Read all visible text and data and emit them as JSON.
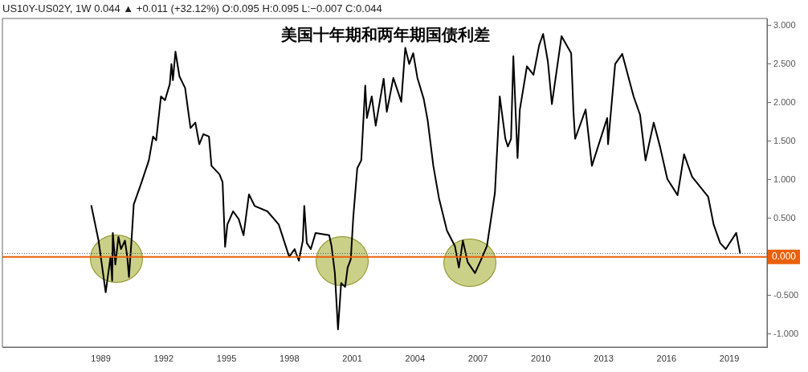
{
  "chart_data": {
    "type": "line",
    "title": "美国十年期和两年期国债利差",
    "subtitle": "US10Y-US02Y, 1W  0.044 ▲ +0.011 (+32.12%) O:0.095 H:0.095 L:−0.007 C:0.044",
    "x": [
      1988.54,
      1988.89,
      1989.23,
      1989.46,
      1989.54,
      1989.57,
      1989.69,
      1989.84,
      1989.96,
      1990.15,
      1990.26,
      1990.34,
      1990.45,
      1990.57,
      1990.91,
      1991.29,
      1991.49,
      1991.64,
      1991.87,
      1992.06,
      1992.29,
      1992.37,
      1992.44,
      1992.56,
      1992.75,
      1993.02,
      1993.28,
      1993.51,
      1993.7,
      1993.89,
      1994.16,
      1994.28,
      1994.66,
      1994.81,
      1994.93,
      1995.04,
      1995.31,
      1995.58,
      1995.81,
      1996.07,
      1996.34,
      1996.95,
      1997.49,
      1997.99,
      1998.25,
      1998.45,
      1998.64,
      1998.71,
      1998.83,
      1999.02,
      1999.25,
      1999.9,
      2000.01,
      2000.17,
      2000.32,
      2000.47,
      2000.66,
      2000.78,
      2000.93,
      2001.05,
      2001.24,
      2001.43,
      2001.62,
      2001.7,
      2001.93,
      2002.12,
      2002.5,
      2002.65,
      2002.96,
      2003.34,
      2003.53,
      2003.72,
      2003.91,
      2004.11,
      2004.41,
      2004.6,
      2004.87,
      2005.14,
      2005.52,
      2005.9,
      2006.09,
      2006.28,
      2006.51,
      2006.86,
      2007.16,
      2007.43,
      2007.81,
      2008.01,
      2008.04,
      2008.31,
      2008.43,
      2008.58,
      2008.69,
      2008.89,
      2009.0,
      2009.34,
      2009.65,
      2009.92,
      2010.11,
      2010.34,
      2010.53,
      2010.99,
      2011.45,
      2011.56,
      2011.64,
      2012.14,
      2012.44,
      2013.17,
      2013.21,
      2013.55,
      2013.89,
      2014.43,
      2014.74,
      2015.0,
      2015.39,
      2015.69,
      2016.04,
      2016.53,
      2016.84,
      2017.22,
      2017.99,
      2018.25,
      2018.56,
      2018.83,
      2019.33,
      2019.52
    ],
    "series": [
      {
        "color": "#000000",
        "values": [
          0.67,
          0.21,
          -0.46,
          0.0,
          -0.31,
          0.31,
          -0.1,
          0.26,
          0.1,
          0.21,
          0.0,
          -0.26,
          0.16,
          0.68,
          0.94,
          1.25,
          1.56,
          1.51,
          2.08,
          2.03,
          2.24,
          2.5,
          2.29,
          2.66,
          2.34,
          2.19,
          1.67,
          1.74,
          1.46,
          1.59,
          1.56,
          1.18,
          1.07,
          0.97,
          0.13,
          0.42,
          0.59,
          0.49,
          0.28,
          0.81,
          0.66,
          0.59,
          0.42,
          0.0,
          0.1,
          -0.05,
          0.21,
          0.66,
          0.18,
          0.1,
          0.31,
          0.28,
          0.14,
          -0.21,
          -0.94,
          -0.34,
          -0.39,
          -0.14,
          -0.03,
          0.52,
          1.15,
          1.25,
          2.22,
          1.8,
          2.08,
          1.7,
          2.31,
          1.88,
          2.32,
          2.01,
          2.71,
          2.5,
          2.64,
          2.32,
          2.05,
          1.77,
          1.18,
          0.76,
          0.34,
          0.14,
          -0.14,
          0.21,
          -0.07,
          -0.21,
          -0.03,
          0.14,
          0.83,
          1.88,
          2.08,
          1.53,
          1.43,
          1.53,
          2.6,
          1.28,
          1.91,
          2.47,
          2.36,
          2.74,
          2.89,
          2.53,
          1.98,
          2.86,
          2.64,
          1.88,
          1.53,
          1.91,
          1.18,
          1.8,
          1.46,
          2.5,
          2.63,
          2.08,
          1.84,
          1.25,
          1.74,
          1.43,
          1.01,
          0.8,
          1.33,
          1.04,
          0.78,
          0.42,
          0.18,
          0.1,
          0.31,
          0.04
        ]
      }
    ],
    "xlim": [
      1984.3,
      2020.8
    ],
    "xticks": [
      1989,
      1992,
      1995,
      1998,
      2001,
      2004,
      2007,
      2010,
      2013,
      2016,
      2019
    ],
    "ylim": [
      -1.17,
      3.09
    ],
    "yticks": [
      {
        "value": -1,
        "label": "-1.000"
      },
      {
        "value": -0.5,
        "label": "-0.500"
      },
      {
        "value": 0.5,
        "label": "0.500"
      },
      {
        "value": 1,
        "label": "1.000"
      },
      {
        "value": 1.5,
        "label": "1.500"
      },
      {
        "value": 2,
        "label": "2.000"
      },
      {
        "value": 2.5,
        "label": "2.500"
      },
      {
        "value": 3,
        "label": "3.000"
      }
    ],
    "ref_lines": [
      {
        "axis": "y",
        "value": 0,
        "label": "0.000",
        "color": "#e8600c",
        "line_style": "solid"
      },
      {
        "axis": "y",
        "value": 0.044,
        "color": "#555555",
        "line_style": "dotted"
      }
    ],
    "grid": false,
    "legend": false,
    "marker": "none",
    "line_style": "solid"
  }
}
